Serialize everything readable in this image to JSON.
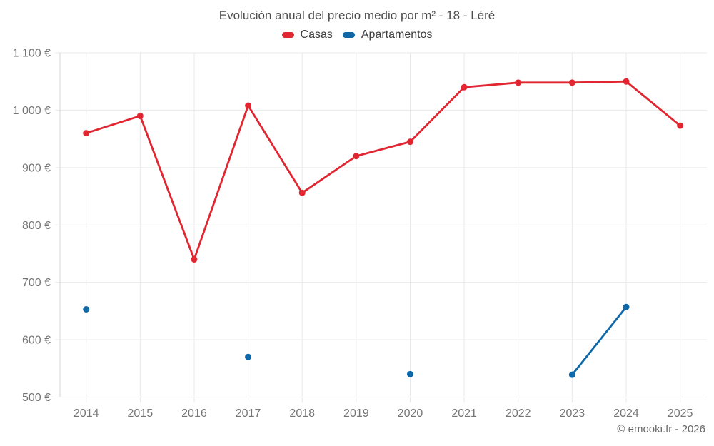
{
  "title": "Evolución anual del precio medio por m² - 18 - Léré",
  "legend": {
    "items": [
      {
        "label": "Casas",
        "color": "#e12631"
      },
      {
        "label": "Apartamentos",
        "color": "#0e67a7"
      }
    ]
  },
  "footer": {
    "credit": "© emooki.fr - 2026"
  },
  "chart_data": {
    "type": "line",
    "title": "Evolución anual del precio medio por m² - 18 - Léré",
    "xlabel": "",
    "ylabel": "",
    "x": [
      "2014",
      "2015",
      "2016",
      "2017",
      "2018",
      "2019",
      "2020",
      "2021",
      "2022",
      "2023",
      "2024",
      "2025"
    ],
    "series": [
      {
        "name": "Casas",
        "color": "#e12631",
        "values": [
          960,
          990,
          740,
          1008,
          856,
          920,
          945,
          1040,
          1048,
          1048,
          1050,
          973
        ]
      },
      {
        "name": "Apartamentos",
        "color": "#0e67a7",
        "values": [
          653,
          null,
          null,
          570,
          null,
          null,
          540,
          null,
          null,
          539,
          657,
          null
        ]
      }
    ],
    "ylim": [
      500,
      1100
    ],
    "y_ticks": [
      {
        "value": 500,
        "label": "500 €"
      },
      {
        "value": 600,
        "label": "600 €"
      },
      {
        "value": 700,
        "label": "700 €"
      },
      {
        "value": 800,
        "label": "800 €"
      },
      {
        "value": 900,
        "label": "900 €"
      },
      {
        "value": 1000,
        "label": "1 000 €"
      },
      {
        "value": 1100,
        "label": "1 100 €"
      }
    ],
    "grid": true,
    "legend_position": "top",
    "colors": {
      "gridline": "#e9e9e9",
      "axis": "#d6d6d6",
      "tick_text": "#757575"
    }
  }
}
